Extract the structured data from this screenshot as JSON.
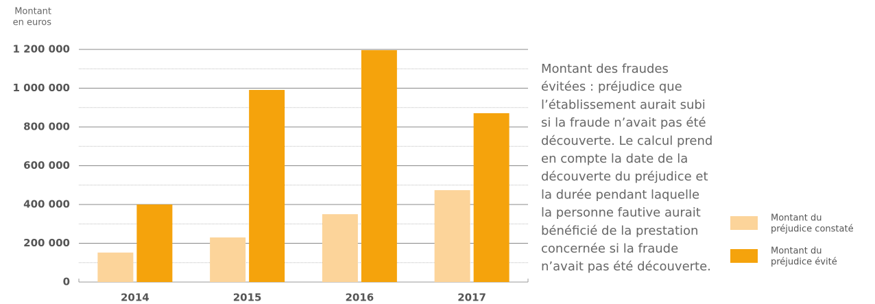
{
  "chart_data": {
    "type": "bar",
    "y_axis_label": [
      "Montant",
      "en euros"
    ],
    "categories": [
      "2014",
      "2015",
      "2016",
      "2017"
    ],
    "series": [
      {
        "name": [
          "Montant du",
          "préjudice constaté"
        ],
        "color": "#fcd49a",
        "values": [
          152000,
          230000,
          350000,
          474000
        ]
      },
      {
        "name": [
          "Montant du",
          "préjudice évité"
        ],
        "color": "#f5a30c",
        "values": [
          400000,
          991000,
          1196000,
          871000
        ]
      }
    ],
    "ylim": [
      0,
      1200000
    ],
    "yticks": [
      0,
      {
        "value": 200000,
        "label": "200 000"
      },
      {
        "value": 400000,
        "label": "400 000"
      },
      {
        "value": 600000,
        "label": "600 000"
      },
      {
        "value": 800000,
        "label": "800 000"
      },
      {
        "value": 1000000,
        "label": "1 000 000"
      },
      {
        "value": 1200000,
        "label": "1 200 000"
      }
    ],
    "minor_yticks": [
      100000,
      300000,
      500000,
      700000,
      900000,
      1100000
    ],
    "grid": true,
    "annotation": [
      "Montant des fraudes",
      "évitées : préjudice que",
      "l’établissement aurait subi",
      "si la fraude n’avait pas été",
      "découverte. Le calcul prend",
      "en compte la date de la",
      "découverte du préjudice et",
      "la durée pendant laquelle",
      "la personne fautive aurait",
      "bénéficié de la prestation",
      "concernée si la fraude",
      "n’avait pas été découverte."
    ]
  }
}
